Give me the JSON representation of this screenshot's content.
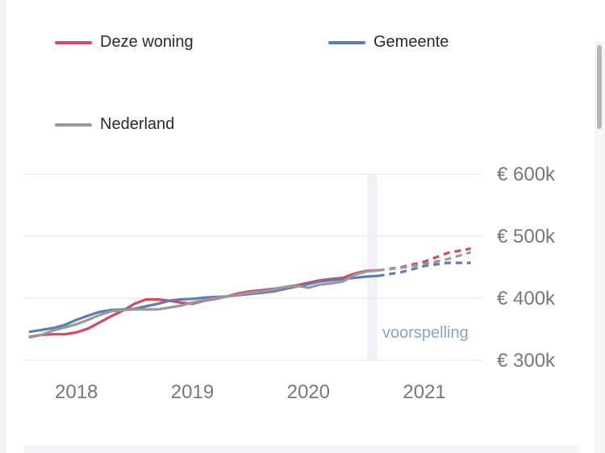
{
  "legend": [
    {
      "label": "Deze woning",
      "color": "#d9485f"
    },
    {
      "label": "Gemeente",
      "color": "#5b7db5"
    },
    {
      "label": "Nederland",
      "color": "#999999"
    }
  ],
  "chart_data": {
    "type": "line",
    "ylim": [
      300000,
      600000
    ],
    "y_ticks": [
      {
        "value": 600000,
        "label": "€ 600k"
      },
      {
        "value": 500000,
        "label": "€ 500k"
      },
      {
        "value": 400000,
        "label": "€ 400k"
      },
      {
        "value": 300000,
        "label": "€ 300k"
      }
    ],
    "xlim": [
      2017.55,
      2021.5
    ],
    "x_ticks": [
      {
        "value": 2018,
        "label": "2018"
      },
      {
        "value": 2019,
        "label": "2019"
      },
      {
        "value": 2020,
        "label": "2020"
      },
      {
        "value": 2021,
        "label": "2021"
      }
    ],
    "forecast_start": 2020.55,
    "forecast_label": "voorspelling",
    "grid": true,
    "series": [
      {
        "name": "Deze woning",
        "color": "#d9485f",
        "x": [
          2017.6,
          2017.7,
          2017.8,
          2017.9,
          2018.0,
          2018.1,
          2018.2,
          2018.3,
          2018.4,
          2018.5,
          2018.6,
          2018.7,
          2018.8,
          2018.9,
          2019.0,
          2019.1,
          2019.2,
          2019.3,
          2019.4,
          2019.5,
          2019.6,
          2019.7,
          2019.8,
          2019.9,
          2020.0,
          2020.1,
          2020.2,
          2020.3,
          2020.4,
          2020.5,
          2020.6
        ],
        "y": [
          338000,
          341000,
          342000,
          342000,
          345000,
          351000,
          361000,
          371000,
          380000,
          391000,
          398000,
          398000,
          396000,
          393000,
          391000,
          396000,
          399000,
          403000,
          408000,
          411000,
          413000,
          415000,
          418000,
          421000,
          425000,
          429000,
          431000,
          433000,
          440000,
          444000,
          445000
        ],
        "forecast_x": [
          2020.6,
          2020.8,
          2021.0,
          2021.2,
          2021.4
        ],
        "forecast_y": [
          445000,
          450000,
          459000,
          473000,
          480000
        ]
      },
      {
        "name": "Gemeente",
        "color": "#5b7db5",
        "x": [
          2017.6,
          2017.7,
          2017.8,
          2017.9,
          2018.0,
          2018.1,
          2018.2,
          2018.3,
          2018.4,
          2018.5,
          2018.6,
          2018.7,
          2018.8,
          2018.9,
          2019.0,
          2019.1,
          2019.2,
          2019.3,
          2019.4,
          2019.5,
          2019.6,
          2019.7,
          2019.8,
          2019.9,
          2020.0,
          2020.1,
          2020.2,
          2020.3,
          2020.4,
          2020.5,
          2020.6
        ],
        "y": [
          346000,
          349000,
          352000,
          357000,
          365000,
          372000,
          378000,
          381000,
          382000,
          383000,
          387000,
          391000,
          396000,
          398000,
          399000,
          401000,
          402000,
          403000,
          405000,
          407000,
          409000,
          411000,
          415000,
          419000,
          423000,
          427000,
          429000,
          431000,
          433000,
          435000,
          436000
        ],
        "forecast_x": [
          2020.6,
          2020.8,
          2021.0,
          2021.2,
          2021.4
        ],
        "forecast_y": [
          436000,
          442000,
          452000,
          457000,
          457000
        ]
      },
      {
        "name": "Nederland",
        "color": "#999999",
        "x": [
          2017.6,
          2017.7,
          2017.8,
          2017.9,
          2018.0,
          2018.1,
          2018.2,
          2018.3,
          2018.4,
          2018.5,
          2018.6,
          2018.7,
          2018.8,
          2018.9,
          2019.0,
          2019.1,
          2019.2,
          2019.3,
          2019.4,
          2019.5,
          2019.6,
          2019.7,
          2019.8,
          2019.9,
          2020.0,
          2020.1,
          2020.2,
          2020.3,
          2020.4,
          2020.5,
          2020.6
        ],
        "y": [
          337000,
          341000,
          348000,
          353000,
          358000,
          365000,
          373000,
          379000,
          381000,
          382000,
          382000,
          382000,
          385000,
          388000,
          393000,
          397000,
          400000,
          403000,
          406000,
          409000,
          411000,
          414000,
          418000,
          420000,
          417000,
          422000,
          424000,
          427000,
          438000,
          443000,
          445000
        ],
        "forecast_x": [
          2020.6,
          2020.8,
          2021.0,
          2021.2,
          2021.4
        ],
        "forecast_y": [
          445000,
          449000,
          455000,
          463000,
          474000
        ]
      }
    ]
  }
}
